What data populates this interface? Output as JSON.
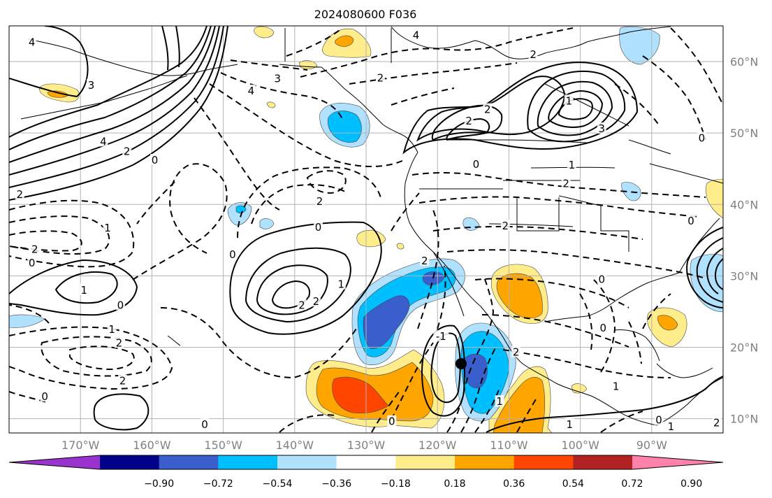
{
  "map": {
    "title": "2024080600 F036",
    "projection": "PlateCarree",
    "extent": {
      "lon": [
        -180,
        -80
      ],
      "lat": [
        8,
        65
      ]
    },
    "gridlines": true,
    "lon_ticks": [
      {
        "value": -170,
        "label": "170°W"
      },
      {
        "value": -160,
        "label": "160°W"
      },
      {
        "value": -150,
        "label": "150°W"
      },
      {
        "value": -140,
        "label": "140°W"
      },
      {
        "value": -130,
        "label": "130°W"
      },
      {
        "value": -120,
        "label": "120°W"
      },
      {
        "value": -110,
        "label": "110°W"
      },
      {
        "value": -100,
        "label": "100°W"
      },
      {
        "value": -90,
        "label": "90°W"
      }
    ],
    "lat_ticks": [
      {
        "value": 60,
        "label": "60°N"
      },
      {
        "value": 50,
        "label": "50°N"
      },
      {
        "value": 40,
        "label": "40°N"
      },
      {
        "value": 30,
        "label": "30°N"
      },
      {
        "value": 20,
        "label": "20°N"
      },
      {
        "value": 10,
        "label": "10°N"
      }
    ],
    "marker": {
      "symbol": "filled-circle",
      "lon": -116.7,
      "lat": 17.7,
      "color": "#000000"
    },
    "contour_labels": [
      {
        "text": "4",
        "lon": -176.8,
        "lat": 62.5
      },
      {
        "text": "3",
        "lon": -168.5,
        "lat": 56.5
      },
      {
        "text": "4",
        "lon": -166.8,
        "lat": 48.6
      },
      {
        "text": "2",
        "lon": -163.5,
        "lat": 47.2
      },
      {
        "text": "0",
        "lon": -159.6,
        "lat": 46.0
      },
      {
        "text": "2",
        "lon": -178.5,
        "lat": 41.2
      },
      {
        "text": "1",
        "lon": -166.2,
        "lat": 36.5
      },
      {
        "text": "2",
        "lon": -176.4,
        "lat": 33.5
      },
      {
        "text": "0",
        "lon": -176.8,
        "lat": 31.6
      },
      {
        "text": "1",
        "lon": -169.5,
        "lat": 27.8
      },
      {
        "text": "0",
        "lon": -164.4,
        "lat": 25.7
      },
      {
        "text": "1",
        "lon": -165.6,
        "lat": 22.3
      },
      {
        "text": "2",
        "lon": -164.6,
        "lat": 20.4
      },
      {
        "text": "2",
        "lon": -164.1,
        "lat": 15.1
      },
      {
        "text": "0",
        "lon": -175.0,
        "lat": 12.9
      },
      {
        "text": "0",
        "lon": -152.6,
        "lat": 9.0
      },
      {
        "text": "0",
        "lon": -181.5,
        "lat": 9.2
      },
      {
        "text": "0",
        "lon": -136.7,
        "lat": 36.6
      },
      {
        "text": "1",
        "lon": -133.5,
        "lat": 28.6
      },
      {
        "text": "2",
        "lon": -139.0,
        "lat": 25.7
      },
      {
        "text": "2",
        "lon": -137.0,
        "lat": 26.2
      },
      {
        "text": "0",
        "lon": -148.7,
        "lat": 32.8
      },
      {
        "text": "2",
        "lon": -136.5,
        "lat": 40.2
      },
      {
        "text": "0",
        "lon": -126.4,
        "lat": 9.4
      },
      {
        "text": "-1",
        "lon": -119.5,
        "lat": 21.3
      },
      {
        "text": "4",
        "lon": -123.0,
        "lat": 63.5
      },
      {
        "text": "2",
        "lon": -106.6,
        "lat": 60.8
      },
      {
        "text": "3",
        "lon": -142.4,
        "lat": 57.4
      },
      {
        "text": "2",
        "lon": -128.0,
        "lat": 57.5
      },
      {
        "text": "4",
        "lon": -146.1,
        "lat": 55.7
      },
      {
        "text": "2",
        "lon": -113.0,
        "lat": 53.1
      },
      {
        "text": "2",
        "lon": -115.6,
        "lat": 51.5
      },
      {
        "text": "0",
        "lon": -114.6,
        "lat": 45.4
      },
      {
        "text": "1",
        "lon": -101.2,
        "lat": 45.3
      },
      {
        "text": "2",
        "lon": -102.0,
        "lat": 42.7
      },
      {
        "text": "2",
        "lon": -110.5,
        "lat": 36.8
      },
      {
        "text": "2",
        "lon": -121.8,
        "lat": 31.9
      },
      {
        "text": "1",
        "lon": -101.6,
        "lat": 54.3
      },
      {
        "text": "3",
        "lon": -97.0,
        "lat": 50.4
      },
      {
        "text": "0",
        "lon": -83.0,
        "lat": 49.1
      },
      {
        "text": "0",
        "lon": -84.5,
        "lat": 37.5
      },
      {
        "text": "0",
        "lon": -97.0,
        "lat": 29.3
      },
      {
        "text": "0",
        "lon": -96.8,
        "lat": 22.5
      },
      {
        "text": "2",
        "lon": -109.0,
        "lat": 19.1
      },
      {
        "text": "1",
        "lon": -111.3,
        "lat": 12.2
      },
      {
        "text": "1",
        "lon": -101.5,
        "lat": 9.0
      },
      {
        "text": "1",
        "lon": -95.0,
        "lat": 14.3
      },
      {
        "text": "0",
        "lon": -89.0,
        "lat": 9.6
      },
      {
        "text": "1",
        "lon": -87.3,
        "lat": 8.7
      },
      {
        "text": "2",
        "lon": -80.9,
        "lat": 9.2
      }
    ]
  },
  "colorbar": {
    "extend": "both",
    "colors": [
      "#9a32cd",
      "#00008b",
      "#3a5fcd",
      "#00bfff",
      "#b0e2ff",
      "#ffffff",
      "#ffec8b",
      "#ffa500",
      "#ff4500",
      "#b22222",
      "#ff82ab"
    ],
    "tick_labels": [
      "−0.90",
      "−0.72",
      "−0.54",
      "−0.36",
      "−0.18",
      "0.18",
      "0.36",
      "0.54",
      "0.72",
      "0.90"
    ]
  }
}
